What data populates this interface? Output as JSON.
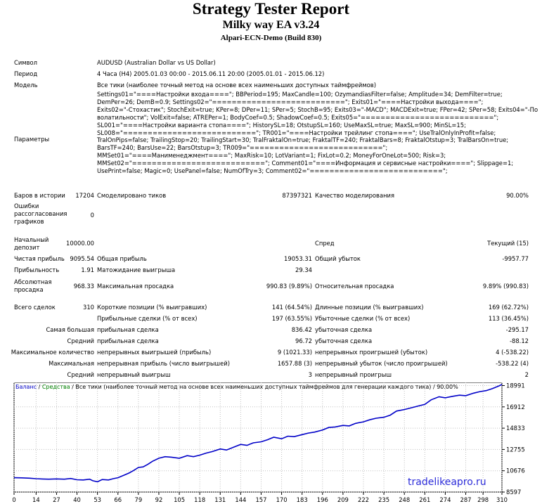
{
  "header": {
    "title": "Strategy Tester Report",
    "ea_name": "Milky way EA v3.24",
    "server": "Alpari-ECN-Demo (Build 830)"
  },
  "info": {
    "symbol_label": "Символ",
    "symbol_value": "AUDUSD (Australian Dollar vs US Dollar)",
    "period_label": "Период",
    "period_value": "4 Часа (H4) 2005.01.03 00:00 - 2015.06.11 20:00 (2005.01.01 - 2015.06.12)",
    "model_label": "Модель",
    "model_value": "Все тики (наиболее точный метод на основе всех наименьших доступных таймфреймов)",
    "params_label": "Параметры",
    "params_lines": [
      "Settings01=\"====Настройки входа====\"; BBPeriod=195; MaxCandle=100; OzymandiasFilter=false; Amplitude=34; DemFilter=true;",
      "DemPer=26; DemB=0.9; Settings02=\"===========================\"; Exits01=\"====Настройки выхода====\";",
      "Exits02=\"-Стохастик\"; StochExit=true; KPer=8; DPer=11; SPer=5; StochB=95; Exits03=\"-MACD\"; MACDExit=true; FPer=42; SPer=58; Exits04=\"-По",
      "волатильности\"; VolExit=false; ATREPer=1; BodyCoef=0.5; ShadowCoef=0.5; Exits05=\"===========================\";",
      "SL001=\"====Настройки варианта стопа====\"; HistorySL=18; OtstupSL=160; UseMaxSL=true; MaxSL=900; MinSL=15;",
      "SL008=\"===========================\"; TR001=\"====Настройки трейлинг стопа====\"; UseTralOnlyInProfit=false;",
      "TralOnPips=false; TrailingStop=20; TrailingStart=30; TralFraktalOn=true; FraktalTF=240; FraktalBars=8; FraktalOtstup=3; TralBarsOn=true;",
      "BarsTF=240; BarsUse=22; BarsOtstup=3; TR009=\"===========================\";",
      "MMSet01=\"====Манименеджмент====\"; MaxRisk=10; LotVariant=1; FixLot=0.2; MoneyForOneLot=500; Risk=3;",
      "MMSet02=\"===========================\"; Comment01=\"====Информация и сервисные настройки====\"; Slippage=1;",
      "UsePrint=false; Magic=0; UsePanel=false; NumOfTry=3; Comment02=\"===========================\";"
    ]
  },
  "stats": {
    "bars_label": "Баров в истории",
    "bars_value": "17204",
    "ticks_label": "Смоделировано тиков",
    "ticks_value": "87397321",
    "quality_label": "Качество моделирования",
    "quality_value": "90.00%",
    "errors_label_1": "Ошибки",
    "errors_label_2": "рассогласования",
    "errors_label_3": "графиков",
    "errors_value": "0",
    "deposit_label_1": "Начальный",
    "deposit_label_2": "депозит",
    "deposit_value": "10000.00",
    "spread_label": "Спред",
    "spread_value": "Текущий (15)",
    "net_label": "Чистая прибыль",
    "net_value": "9095.54",
    "gross_profit_label": "Общая прибыль",
    "gross_profit_value": "19053.31",
    "gross_loss_label": "Общий убыток",
    "gross_loss_value": "-9957.77",
    "pf_label": "Прибыльность",
    "pf_value": "1.91",
    "expected_label": "Матожидание выигрыша",
    "expected_value": "29.34",
    "abs_dd_label_1": "Абсолютная",
    "abs_dd_label_2": "просадка",
    "abs_dd_value": "968.33",
    "max_dd_label": "Максимальная просадка",
    "max_dd_value": "990.83 (9.89%)",
    "rel_dd_label": "Относительная просадка",
    "rel_dd_value": "9.89% (990.83)",
    "trades_label": "Всего сделок",
    "trades_value": "310",
    "short_label": "Короткие позиции (% выигравших)",
    "short_value": "141 (64.54%)",
    "long_label": "Длинные позиции (% выигравших)",
    "long_value": "169 (62.72%)",
    "profit_trades_label": "Прибыльные сделки (% от всех)",
    "profit_trades_value": "197 (63.55%)",
    "loss_trades_label": "Убыточные сделки (% от всех)",
    "loss_trades_value": "113 (36.45%)",
    "largest_label": "Самая большая",
    "largest_profit_label": "прибыльная сделка",
    "largest_profit_value": "836.42",
    "largest_loss_label": "убыточная сделка",
    "largest_loss_value": "-295.17",
    "average_label": "Средний",
    "average_profit_label": "прибыльная сделка",
    "average_profit_value": "96.72",
    "average_loss_label": "убыточная сделка",
    "average_loss_value": "-88.12",
    "max_count_label": "Максимальное количество",
    "max_cons_wins_label": "непрерывных выигрышей (прибыль)",
    "max_cons_wins_value": "9 (1021.33)",
    "max_cons_losses_label": "непрерывных проигрышей (убыток)",
    "max_cons_losses_value": "4 (-538.22)",
    "maximal_label": "Максимальная",
    "maximal_profit_label": "непрерывная прибыль (число выигрышей)",
    "maximal_profit_value": "1657.88 (3)",
    "maximal_loss_label": "непрерывный убыток (число проигрышей)",
    "maximal_loss_value": "-538.22 (4)",
    "avg_cons_label": "Средний",
    "avg_cons_wins_label": "непрерывный выигрыш",
    "avg_cons_wins_value": "3",
    "avg_cons_losses_label": "непрерывный проигрыш",
    "avg_cons_losses_value": "2"
  },
  "chart_legend": {
    "balance": "Баланс",
    "sep1": " / ",
    "equity": "Средства",
    "rest": " / Все тики (наиболее точный метод на основе всех наименьших доступных таймфреймов для генерации каждого тика) / 90.00%"
  },
  "watermark": "tradelikeapro.ru",
  "colors": {
    "balance_line": "#0000c8",
    "equity_line": "#008000",
    "grid": "#c0c0c0",
    "watermark": "#2b2bd9"
  },
  "chart_data": {
    "type": "line",
    "xlabel": "",
    "ylabel": "",
    "x_ticks": [
      0,
      14,
      27,
      40,
      53,
      66,
      79,
      92,
      105,
      118,
      131,
      144,
      157,
      170,
      183,
      196,
      209,
      222,
      235,
      248,
      261,
      274,
      287,
      298,
      310
    ],
    "y_ticks": [
      8597,
      10676,
      12755,
      14833,
      16912,
      18991
    ],
    "xlim": [
      0,
      310
    ],
    "ylim": [
      8597,
      19300
    ],
    "series": [
      {
        "name": "Баланс",
        "x": [
          0,
          5,
          10,
          14,
          18,
          22,
          27,
          32,
          36,
          40,
          44,
          48,
          50,
          53,
          56,
          60,
          63,
          66,
          70,
          73,
          76,
          79,
          82,
          85,
          88,
          92,
          96,
          100,
          105,
          110,
          114,
          118,
          122,
          126,
          131,
          135,
          140,
          144,
          148,
          152,
          157,
          161,
          165,
          170,
          174,
          178,
          183,
          187,
          191,
          196,
          200,
          204,
          209,
          213,
          217,
          222,
          226,
          230,
          235,
          239,
          243,
          248,
          252,
          257,
          261,
          265,
          270,
          274,
          279,
          283,
          287,
          292,
          296,
          300,
          304,
          308,
          310
        ],
        "y": [
          10000,
          9980,
          9950,
          9900,
          9870,
          9850,
          9880,
          9850,
          9920,
          9800,
          9780,
          9850,
          9700,
          9600,
          9820,
          9780,
          9900,
          10000,
          10250,
          10450,
          10700,
          11000,
          11050,
          11300,
          11600,
          11900,
          12050,
          12000,
          11900,
          12150,
          12050,
          12200,
          12400,
          12550,
          12800,
          12700,
          13000,
          13250,
          13150,
          13400,
          13500,
          13700,
          13950,
          13800,
          14050,
          14000,
          14200,
          14350,
          14450,
          14650,
          14900,
          14950,
          15100,
          15050,
          15300,
          15450,
          15650,
          15800,
          15900,
          16100,
          16500,
          16650,
          16800,
          17000,
          17150,
          17600,
          17900,
          17800,
          17950,
          18050,
          18000,
          18250,
          18400,
          18500,
          18700,
          18950,
          19095
        ]
      }
    ]
  }
}
